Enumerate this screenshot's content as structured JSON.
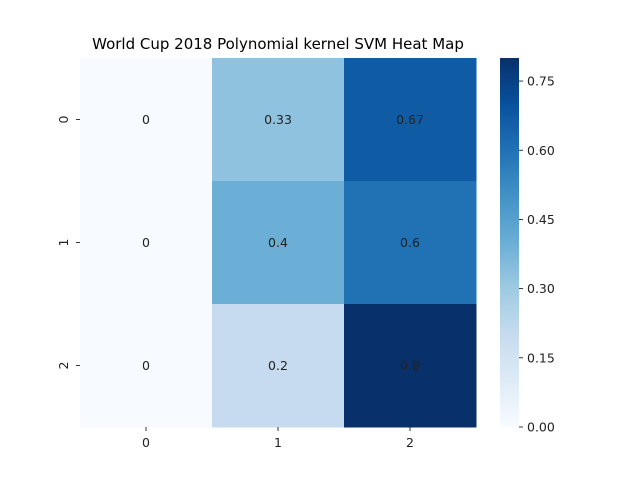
{
  "chart_data": {
    "type": "heatmap",
    "title": "World Cup 2018 Polynomial kernel SVM Heat Map",
    "xlabel": "",
    "ylabel": "",
    "x_categories": [
      "0",
      "1",
      "2"
    ],
    "y_categories": [
      "0",
      "1",
      "2"
    ],
    "values": [
      [
        0,
        0.33,
        0.67
      ],
      [
        0,
        0.4,
        0.6
      ],
      [
        0,
        0.2,
        0.8
      ]
    ],
    "cell_labels": [
      [
        "0",
        "0.33",
        "0.67"
      ],
      [
        "0",
        "0.4",
        "0.6"
      ],
      [
        "0",
        "0.2",
        "0.8"
      ]
    ],
    "colormap": "Blues",
    "color_range": [
      0,
      0.8
    ],
    "colorbar_ticks": [
      {
        "value": 0.0,
        "label": "0.00"
      },
      {
        "value": 0.15,
        "label": "0.15"
      },
      {
        "value": 0.3,
        "label": "0.30"
      },
      {
        "value": 0.45,
        "label": "0.45"
      },
      {
        "value": 0.6,
        "label": "0.60"
      },
      {
        "value": 0.75,
        "label": "0.75"
      }
    ],
    "colorbar_placement": "right",
    "grid": false,
    "colors": {
      "low": "#f7fbff",
      "high": "#08306b",
      "text_dark": "#262626",
      "text_light": "#ffffff"
    }
  }
}
